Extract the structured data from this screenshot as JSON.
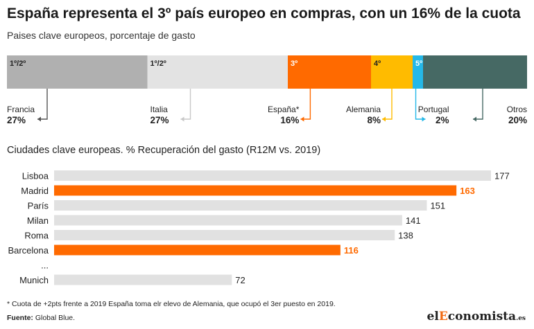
{
  "title": "España representa el 3º país europeo en compras, con un 16% de la cuota",
  "subtitle": "Paises clave europeos, porcentaje de gasto",
  "section2_title": "Ciudades clave europeas. % Recuperación del gasto (R12M vs. 2019)",
  "footnote": "* Cuota de +2pts frente a 2019 España toma elr elevo de Alemania, que ocupó el 3er puesto en 2019.",
  "source_label": "Fuente:",
  "source_text": "Global Blue.",
  "logo": {
    "part1": "el",
    "part2": "E",
    "part3": "conomista",
    "part4": ".es"
  },
  "colors": {
    "orange": "#ff6a00",
    "yellow": "#ffbb00",
    "cyan": "#25b8e8",
    "teal": "#466964",
    "gray_dark": "#b0b0b0",
    "gray_light": "#e3e3e3",
    "bar_gray": "#e1e1e1"
  },
  "chart_data": [
    {
      "type": "bar",
      "orientation": "stacked-horizontal",
      "categories": [
        "Francia",
        "Italia",
        "España*",
        "Alemania",
        "Portugal",
        "Otros"
      ],
      "rank_labels": [
        "1º/2º",
        "1º/2º",
        "3º",
        "4º",
        "5º",
        ""
      ],
      "values": [
        27,
        27,
        16,
        8,
        2,
        20
      ],
      "value_labels": [
        "27%",
        "27%",
        "16%",
        "8%",
        "2%",
        "20%"
      ],
      "colors": [
        "#b0b0b0",
        "#e3e3e3",
        "#ff6a00",
        "#ffbb00",
        "#25b8e8",
        "#466964"
      ],
      "rank_text_colors": [
        "#222222",
        "#222222",
        "#ffffff",
        "#222222",
        "#ffffff",
        "#ffffff"
      ],
      "title": "Paises clave europeos, porcentaje de gasto"
    },
    {
      "type": "bar",
      "orientation": "horizontal",
      "categories": [
        "Lisboa",
        "Madrid",
        "París",
        "Milan",
        "Roma",
        "Barcelona",
        "...",
        "Munich"
      ],
      "values": [
        177,
        163,
        151,
        141,
        138,
        116,
        null,
        72
      ],
      "highlight": [
        false,
        true,
        false,
        false,
        false,
        true,
        false,
        false
      ],
      "xlim": [
        0,
        177
      ],
      "title": "Ciudades clave europeas. % Recuperación del gasto (R12M vs. 2019)"
    }
  ]
}
